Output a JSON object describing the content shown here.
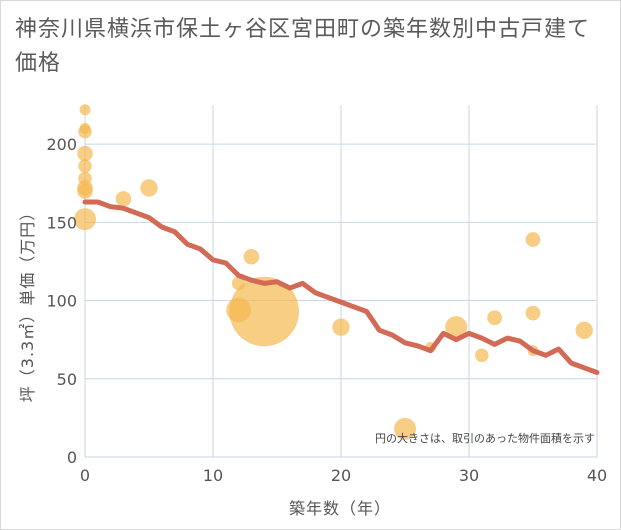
{
  "chart_data": {
    "type": "scatter",
    "title": "神奈川県横浜市保土ヶ谷区宮田町の築年数別中古戸建て価格",
    "xlabel": "築年数（年）",
    "ylabel": "坪（3.3㎡）単価（万円）",
    "note": "円の大きさは、取引のあった物件面積を示す",
    "xlim": [
      0,
      40
    ],
    "ylim": [
      0,
      225
    ],
    "xticks": [
      0,
      10,
      20,
      30,
      40
    ],
    "yticks": [
      0,
      50,
      100,
      150,
      200
    ],
    "grid": true,
    "colors": {
      "bubble": "#f5b850",
      "line": "#d36a55",
      "grid": "#c8d6e6"
    },
    "bubbles": [
      {
        "x": 0,
        "y": 222,
        "size": 1
      },
      {
        "x": 0,
        "y": 210,
        "size": 1
      },
      {
        "x": 0,
        "y": 208,
        "size": 1.5
      },
      {
        "x": 0,
        "y": 194,
        "size": 2
      },
      {
        "x": 0,
        "y": 186,
        "size": 1.5
      },
      {
        "x": 0,
        "y": 178,
        "size": 1.5
      },
      {
        "x": 0,
        "y": 172,
        "size": 2
      },
      {
        "x": 0,
        "y": 170,
        "size": 2
      },
      {
        "x": 0,
        "y": 152,
        "size": 4
      },
      {
        "x": 3,
        "y": 165,
        "size": 2
      },
      {
        "x": 5,
        "y": 172,
        "size": 2.5
      },
      {
        "x": 12,
        "y": 94,
        "size": 5
      },
      {
        "x": 12,
        "y": 111,
        "size": 1.5
      },
      {
        "x": 13,
        "y": 128,
        "size": 2
      },
      {
        "x": 14,
        "y": 93,
        "size": 40
      },
      {
        "x": 20,
        "y": 83,
        "size": 2.5
      },
      {
        "x": 25,
        "y": 18,
        "size": 4
      },
      {
        "x": 27,
        "y": 70,
        "size": 1
      },
      {
        "x": 29,
        "y": 83,
        "size": 4
      },
      {
        "x": 31,
        "y": 65,
        "size": 1.5
      },
      {
        "x": 32,
        "y": 89,
        "size": 1.8
      },
      {
        "x": 35,
        "y": 139,
        "size": 1.8
      },
      {
        "x": 35,
        "y": 92,
        "size": 1.8
      },
      {
        "x": 35,
        "y": 68,
        "size": 1
      },
      {
        "x": 39,
        "y": 81,
        "size": 2.5
      }
    ],
    "trend": {
      "x": [
        0,
        1,
        2,
        3,
        4,
        5,
        6,
        7,
        8,
        9,
        10,
        11,
        12,
        13,
        14,
        15,
        16,
        17,
        18,
        19,
        20,
        21,
        22,
        23,
        24,
        25,
        26,
        27,
        28,
        29,
        30,
        31,
        32,
        33,
        34,
        35,
        36,
        37,
        38,
        39,
        40
      ],
      "y": [
        163,
        163,
        160,
        159,
        156,
        153,
        147,
        144,
        136,
        133,
        126,
        124,
        116,
        113,
        111,
        112,
        108,
        111,
        105,
        102,
        99,
        96,
        93,
        81,
        78,
        73,
        71,
        68,
        79,
        75,
        79,
        76,
        72,
        76,
        74,
        68,
        65,
        69,
        60,
        57,
        54
      ]
    }
  }
}
